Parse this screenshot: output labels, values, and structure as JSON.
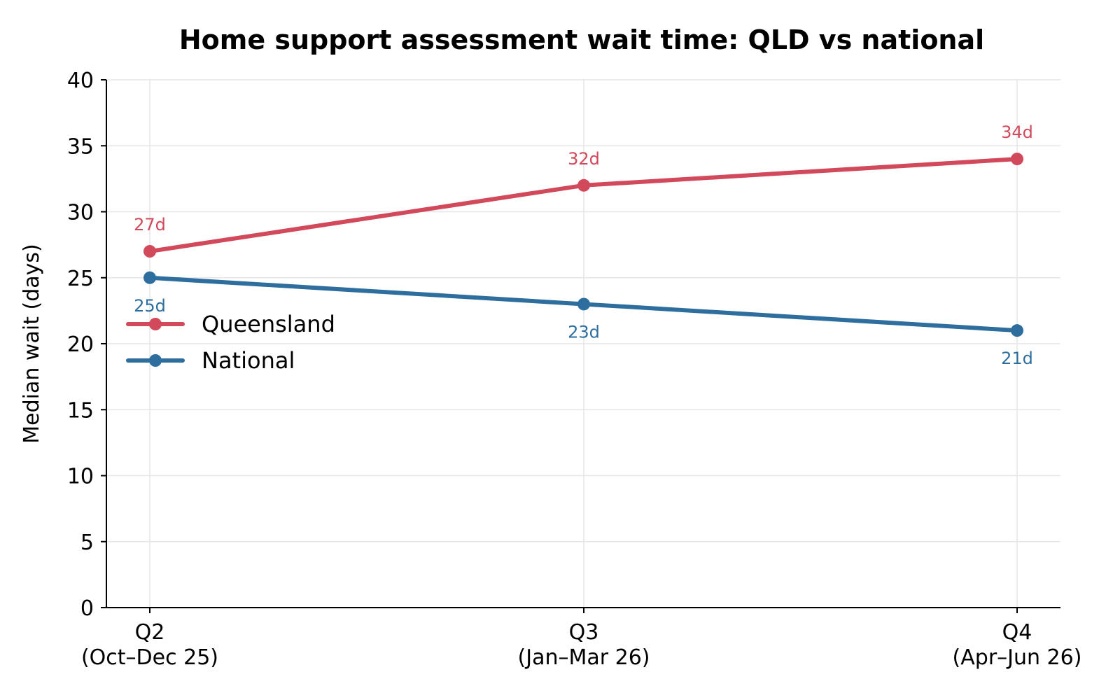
{
  "chart_data": {
    "type": "line",
    "title": "Home support assessment wait time: QLD vs national",
    "xlabel": "",
    "ylabel": "Median wait (days)",
    "categories": [
      [
        "Q2",
        "(Oct–Dec 25)"
      ],
      [
        "Q3",
        "(Jan–Mar 26)"
      ],
      [
        "Q4",
        "(Apr–Jun 26)"
      ]
    ],
    "series": [
      {
        "name": "Queensland",
        "color": "#d1495b",
        "values": [
          27,
          32,
          34
        ],
        "labels": [
          "27d",
          "32d",
          "34d"
        ],
        "label_position": "above"
      },
      {
        "name": "National",
        "color": "#2e6e9e",
        "values": [
          25,
          23,
          21
        ],
        "labels": [
          "25d",
          "23d",
          "21d"
        ],
        "label_position": "below"
      }
    ],
    "ylim": [
      0,
      40
    ],
    "yticks": [
      0,
      5,
      10,
      15,
      20,
      25,
      30,
      35,
      40
    ],
    "grid": true,
    "legend_position": "center-left"
  }
}
